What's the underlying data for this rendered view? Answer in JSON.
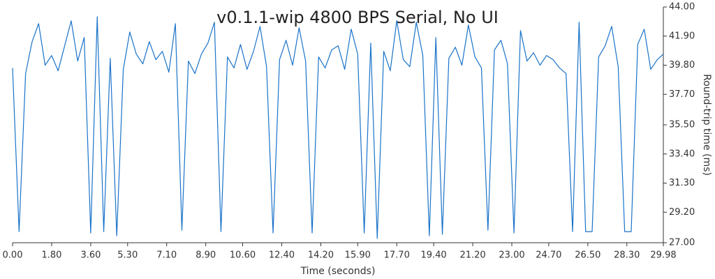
{
  "chart_data": {
    "type": "line",
    "title": "v0.1.1-wip 4800 BPS Serial, No UI",
    "x_label": "Time (seconds)",
    "y_label": "Round-trip time (ms)",
    "x": [
      0,
      0.3,
      0.6,
      0.9,
      1.2,
      1.5,
      1.8,
      2.1,
      2.4,
      2.7,
      3,
      3.3,
      3.6,
      3.9,
      4.2,
      4.5,
      4.8,
      5.1,
      5.4,
      5.7,
      6,
      6.3,
      6.6,
      6.9,
      7.2,
      7.5,
      7.8,
      8.1,
      8.4,
      8.7,
      9,
      9.3,
      9.6,
      9.9,
      10.2,
      10.5,
      10.8,
      11.1,
      11.4,
      11.7,
      12,
      12.3,
      12.6,
      12.9,
      13.2,
      13.5,
      13.8,
      14.1,
      14.4,
      14.7,
      15,
      15.3,
      15.6,
      15.9,
      16.2,
      16.5,
      16.8,
      17.1,
      17.4,
      17.7,
      18,
      18.3,
      18.6,
      18.9,
      19.2,
      19.5,
      19.8,
      20.1,
      20.4,
      20.7,
      21,
      21.3,
      21.6,
      21.9,
      22.2,
      22.5,
      22.8,
      23.1,
      23.4,
      23.7,
      24,
      24.3,
      24.6,
      24.9,
      25.2,
      25.5,
      25.8,
      26.1,
      26.4,
      26.7,
      27,
      27.3,
      27.6,
      27.9,
      28.2,
      28.5,
      28.8,
      29.1,
      29.4,
      29.7,
      29.98
    ],
    "series": [
      {
        "name": "Round-trip time",
        "color": "#1a73c9",
        "values": [
          39.6,
          27.8,
          39.2,
          41.5,
          42.8,
          39.8,
          40.5,
          39.4,
          41.2,
          43.0,
          40.1,
          41.8,
          27.7,
          43.3,
          27.8,
          40.3,
          27.5,
          39.5,
          42.2,
          40.6,
          39.9,
          41.5,
          40.2,
          40.8,
          39.3,
          42.8,
          27.9,
          40.1,
          39.2,
          40.6,
          41.4,
          42.9,
          27.8,
          40.4,
          39.6,
          41.3,
          39.5,
          40.8,
          42.6,
          39.7,
          27.7,
          40.2,
          41.6,
          39.8,
          42.5,
          40.1,
          27.7,
          40.4,
          39.6,
          40.9,
          41.2,
          39.5,
          42.4,
          40.6,
          27.7,
          41.4,
          27.3,
          40.8,
          39.4,
          43.0,
          40.2,
          39.7,
          42.9,
          40.5,
          27.5,
          41.8,
          27.6,
          40.3,
          41.1,
          39.8,
          42.7,
          40.4,
          39.6,
          27.9,
          40.9,
          41.6,
          39.9,
          27.7,
          42.3,
          40.1,
          40.7,
          39.8,
          40.5,
          40.2,
          39.6,
          39.2,
          27.8,
          42.9,
          27.8,
          27.8,
          40.4,
          41.2,
          42.6,
          39.7,
          27.8,
          27.8,
          41.3,
          42.4,
          39.5,
          40.2,
          40.6
        ]
      }
    ],
    "xlim": [
      0,
      29.98
    ],
    "ylim": [
      27,
      44
    ],
    "xticks": [
      {
        "value": 0,
        "label": "0.00"
      },
      {
        "value": 1.8,
        "label": "1.80"
      },
      {
        "value": 3.6,
        "label": "3.60"
      },
      {
        "value": 5.3,
        "label": "5.30"
      },
      {
        "value": 7.1,
        "label": "7.10"
      },
      {
        "value": 8.9,
        "label": "8.90"
      },
      {
        "value": 10.6,
        "label": "10.60"
      },
      {
        "value": 12.4,
        "label": "12.40"
      },
      {
        "value": 14.2,
        "label": "14.20"
      },
      {
        "value": 15.9,
        "label": "15.90"
      },
      {
        "value": 17.7,
        "label": "17.70"
      },
      {
        "value": 19.4,
        "label": "19.40"
      },
      {
        "value": 21.2,
        "label": "21.20"
      },
      {
        "value": 23,
        "label": "23.00"
      },
      {
        "value": 24.7,
        "label": "24.70"
      },
      {
        "value": 26.5,
        "label": "26.50"
      },
      {
        "value": 28.3,
        "label": "28.30"
      },
      {
        "value": 29.98,
        "label": "29.98"
      }
    ],
    "yticks": [
      {
        "value": 27,
        "label": "27.00"
      },
      {
        "value": 29.2,
        "label": "29.20"
      },
      {
        "value": 31.3,
        "label": "31.30"
      },
      {
        "value": 33.4,
        "label": "33.40"
      },
      {
        "value": 35.5,
        "label": "35.50"
      },
      {
        "value": 37.7,
        "label": "37.70"
      },
      {
        "value": 39.8,
        "label": "39.80"
      },
      {
        "value": 41.9,
        "label": "41.90"
      },
      {
        "value": 44,
        "label": "44.00"
      }
    ],
    "y_axis_side": "right"
  }
}
